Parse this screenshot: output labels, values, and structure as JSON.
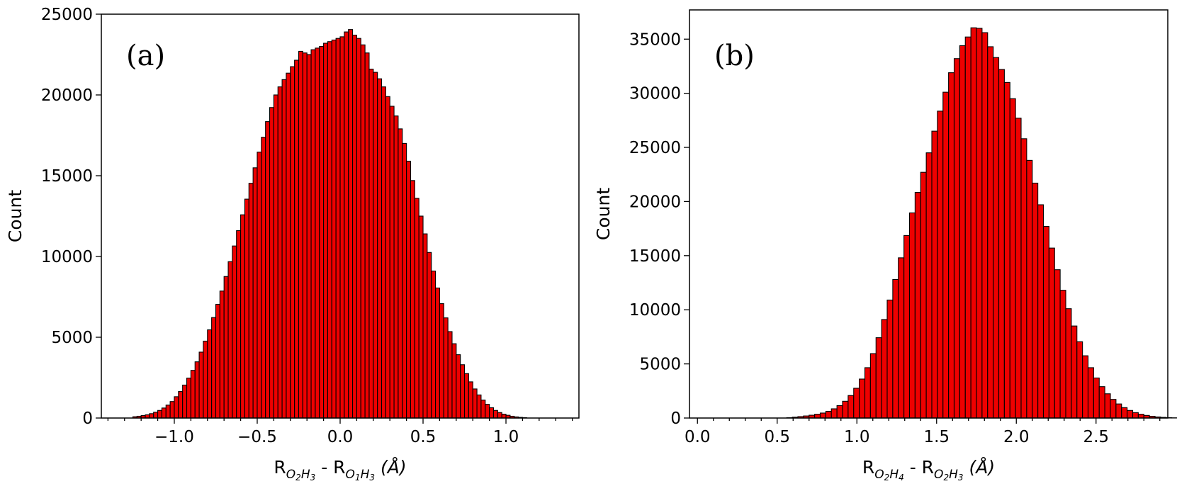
{
  "colors": {
    "bar_fill": "#ee0000",
    "bar_edge": "#000000",
    "background": "#ffffff"
  },
  "chart_data": [
    {
      "type": "bar",
      "panel_label": "(a)",
      "xlabel": {
        "prefix": "R",
        "sub1_a": "O",
        "sub1_a_index": "2",
        "sub1_b": "H",
        "sub1_b_index": "3",
        "sep": " - R",
        "sub2_a": "O",
        "sub2_a_index": "1",
        "sub2_b": "H",
        "sub2_b_index": "3",
        "unit": " (Å)"
      },
      "ylabel": "Count",
      "xlim": [
        -1.44,
        1.44
      ],
      "ylim": [
        0,
        25000
      ],
      "grid": false,
      "bin_start": -1.25,
      "bin_width": 0.025,
      "values": [
        80,
        110,
        150,
        200,
        270,
        360,
        470,
        620,
        800,
        1020,
        1320,
        1640,
        2040,
        2470,
        2950,
        3480,
        4080,
        4760,
        5460,
        6220,
        7040,
        7860,
        8760,
        9680,
        10650,
        11600,
        12580,
        13550,
        14530,
        15490,
        16460,
        17380,
        18350,
        19220,
        20000,
        20500,
        20950,
        21350,
        21750,
        22150,
        22700,
        22600,
        22500,
        22800,
        22900,
        23000,
        23200,
        23300,
        23400,
        23500,
        23600,
        23900,
        24050,
        23700,
        23500,
        23100,
        22600,
        21600,
        21400,
        21000,
        20500,
        19900,
        19300,
        18700,
        17900,
        17000,
        15900,
        14700,
        13600,
        12500,
        11400,
        10250,
        9100,
        8050,
        7080,
        6200,
        5350,
        4600,
        3920,
        3300,
        2750,
        2240,
        1800,
        1430,
        1110,
        850,
        640,
        470,
        340,
        240,
        170,
        110,
        70,
        40,
        25
      ],
      "xticks": [
        {
          "value": -1.0,
          "label": "−1.0"
        },
        {
          "value": -0.5,
          "label": "−0.5"
        },
        {
          "value": 0.0,
          "label": "0.0"
        },
        {
          "value": 0.5,
          "label": "0.5"
        },
        {
          "value": 1.0,
          "label": "1.0"
        }
      ],
      "xminor_step": 0.1,
      "yticks": [
        {
          "value": 0,
          "label": "0"
        },
        {
          "value": 5000,
          "label": "5000"
        },
        {
          "value": 10000,
          "label": "10000"
        },
        {
          "value": 15000,
          "label": "15000"
        },
        {
          "value": 20000,
          "label": "20000"
        },
        {
          "value": 25000,
          "label": "25000"
        }
      ]
    },
    {
      "type": "bar",
      "panel_label": "(b)",
      "xlabel": {
        "prefix": "R",
        "sub1_a": "O",
        "sub1_a_index": "2",
        "sub1_b": "H",
        "sub1_b_index": "4",
        "sep": " - R",
        "sub2_a": "O",
        "sub2_a_index": "2",
        "sub2_b": "H",
        "sub2_b_index": "3",
        "unit": " (Å)"
      },
      "ylabel": "Count",
      "xlim": [
        -0.05,
        2.95
      ],
      "ylim": [
        0,
        37700
      ],
      "grid": false,
      "bin_start": 0.0,
      "bin_width": 0.035,
      "values": [
        0,
        0,
        0,
        0,
        0,
        0,
        0,
        0,
        0,
        0,
        0,
        0,
        0,
        0,
        0,
        0,
        30,
        80,
        130,
        190,
        260,
        350,
        460,
        620,
        850,
        1150,
        1550,
        2080,
        2750,
        3600,
        4650,
        5950,
        7420,
        9100,
        10900,
        12800,
        14800,
        16860,
        18950,
        20840,
        22700,
        24500,
        26500,
        28350,
        30100,
        31900,
        33200,
        34400,
        35200,
        36050,
        36000,
        35600,
        34300,
        33300,
        32200,
        31000,
        29500,
        27700,
        25800,
        23800,
        21700,
        19700,
        17700,
        15700,
        13700,
        11800,
        10100,
        8500,
        7050,
        5750,
        4650,
        3700,
        2900,
        2240,
        1720,
        1300,
        960,
        700,
        500,
        350,
        240,
        160,
        100,
        60,
        35,
        20
      ],
      "xticks": [
        {
          "value": 0.0,
          "label": "0.0"
        },
        {
          "value": 0.5,
          "label": "0.5"
        },
        {
          "value": 1.0,
          "label": "1.0"
        },
        {
          "value": 1.5,
          "label": "1.5"
        },
        {
          "value": 2.0,
          "label": "2.0"
        },
        {
          "value": 2.5,
          "label": "2.5"
        }
      ],
      "xminor_step": 0.1,
      "yticks": [
        {
          "value": 0,
          "label": "0"
        },
        {
          "value": 5000,
          "label": "5000"
        },
        {
          "value": 10000,
          "label": "10000"
        },
        {
          "value": 15000,
          "label": "15000"
        },
        {
          "value": 20000,
          "label": "20000"
        },
        {
          "value": 25000,
          "label": "25000"
        },
        {
          "value": 30000,
          "label": "30000"
        },
        {
          "value": 35000,
          "label": "35000"
        }
      ]
    }
  ]
}
